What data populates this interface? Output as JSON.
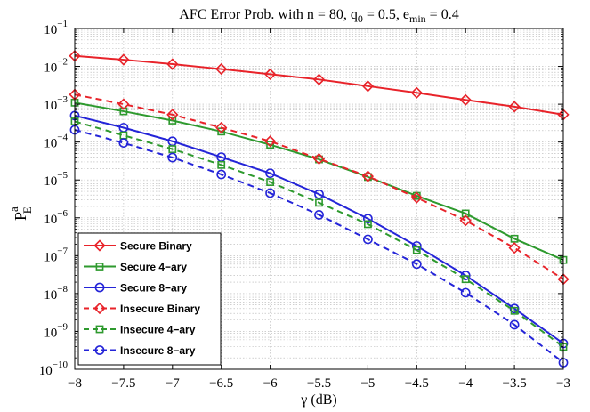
{
  "chart_data": {
    "type": "line",
    "title": "AFC Error Prob. with n = 80, q",
    "title_parts": {
      "prefix": "AFC Error Prob. with n = 80, q",
      "q_sub": "0",
      "mid": " = 0.5, e",
      "e_sub": "min",
      "suffix": " = 0.4"
    },
    "xlabel": "γ (dB)",
    "ylabel": {
      "base": "P",
      "sup": "a",
      "sub": "E"
    },
    "xlim": [
      -8,
      -3
    ],
    "ylim_log10": [
      -10,
      -1
    ],
    "yscale": "log",
    "grid": true,
    "legend_position": "bottom-left",
    "x_ticks": [
      "-8",
      "-7.5",
      "-7",
      "-6.5",
      "-6",
      "-5.5",
      "-5",
      "-4.5",
      "-4",
      "-3.5",
      "-3"
    ],
    "x_tick_values": [
      -8,
      -7.5,
      -7,
      -6.5,
      -6,
      -5.5,
      -5,
      -4.5,
      -4,
      -3.5,
      -3
    ],
    "y_tick_exponents": [
      "-1",
      "-2",
      "-3",
      "-4",
      "-5",
      "-6",
      "-7",
      "-8",
      "-9",
      "-10"
    ],
    "y_tick_base": "10",
    "x": [
      -8,
      -7.5,
      -7,
      -6.5,
      -6,
      -5.5,
      -5,
      -4.5,
      -4,
      -3.5,
      -3
    ],
    "series": [
      {
        "name": "Secure Binary",
        "color": "#e8232a",
        "dash": "solid",
        "marker": "diamond",
        "values": [
          0.019,
          0.015,
          0.0115,
          0.0085,
          0.0062,
          0.0045,
          0.003,
          0.002,
          0.0013,
          0.00086,
          0.00053
        ]
      },
      {
        "name": "Secure 4−ary",
        "color": "#2e9a2e",
        "dash": "solid",
        "marker": "square",
        "values": [
          0.0011,
          0.00065,
          0.00037,
          0.00019,
          8.5e-05,
          3.5e-05,
          1.2e-05,
          3.8e-06,
          1.3e-06,
          2.8e-07,
          7.7e-08
        ]
      },
      {
        "name": "Secure 8−ary",
        "color": "#2424d8",
        "dash": "solid",
        "marker": "circle",
        "values": [
          0.0005,
          0.00024,
          0.000105,
          4e-05,
          1.5e-05,
          4.2e-06,
          9.5e-07,
          1.8e-07,
          3e-08,
          4e-09,
          4.8e-10
        ]
      },
      {
        "name": "Insecure Binary",
        "color": "#e8232a",
        "dash": "dashed",
        "marker": "diamond",
        "values": [
          0.0018,
          0.001,
          0.00053,
          0.00024,
          0.000105,
          3.6e-05,
          1.25e-05,
          3.4e-06,
          8.5e-07,
          1.6e-07,
          2.4e-08
        ]
      },
      {
        "name": "Insecure 4−ary",
        "color": "#2e9a2e",
        "dash": "dashed",
        "marker": "square",
        "values": [
          0.00035,
          0.00015,
          6.5e-05,
          2.5e-05,
          8.8e-06,
          2.5e-06,
          6.8e-07,
          1.4e-07,
          2.4e-08,
          3.5e-09,
          3.9e-10
        ]
      },
      {
        "name": "Insecure 8−ary",
        "color": "#2424d8",
        "dash": "dashed",
        "marker": "circle",
        "values": [
          0.00021,
          9.5e-05,
          3.9e-05,
          1.4e-05,
          4.5e-06,
          1.2e-06,
          2.7e-07,
          6e-08,
          1.05e-08,
          1.5e-09,
          1.5e-10
        ]
      }
    ]
  }
}
